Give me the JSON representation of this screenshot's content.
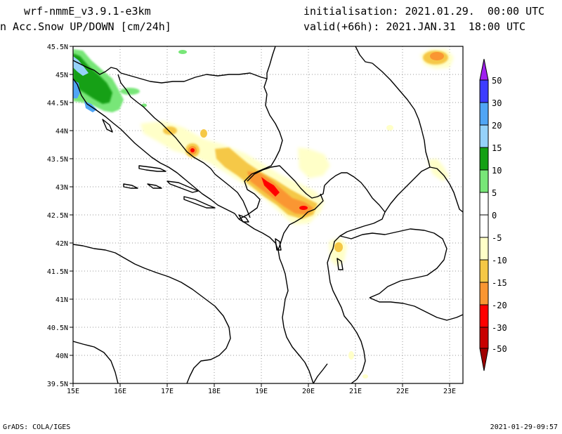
{
  "header": {
    "model": "wrf-nmmE_v3.9.1-e3km",
    "field": "n Acc.Snow UP/DOWN [cm/24h]",
    "initialisation": "initialisation: 2021.01.29.  00:00 UTC",
    "valid": "valid(+66h): 2021.JAN.31  18:00 UTC"
  },
  "map": {
    "lat_ticks": [
      "45.5N",
      "45N",
      "44.5N",
      "44N",
      "43.5N",
      "43N",
      "42.5N",
      "42N",
      "41.5N",
      "41N",
      "40.5N",
      "40N",
      "39.5N"
    ],
    "lon_ticks": [
      "15E",
      "16E",
      "17E",
      "18E",
      "19E",
      "20E",
      "21E",
      "22E",
      "23E"
    ],
    "lon_range": [
      15,
      23.3
    ],
    "lat_range": [
      39.5,
      45.5
    ]
  },
  "colorbar": {
    "labels": [
      "50",
      "30",
      "20",
      "15",
      "10",
      "5",
      "0",
      "-5",
      "-10",
      "-15",
      "-20",
      "-30",
      "-50"
    ],
    "colors": [
      "#a020f0",
      "#3c3cff",
      "#50a5f5",
      "#96d2fa",
      "#14a014",
      "#78e678",
      "#ffffff",
      "#ffffc8",
      "#f5c846",
      "#fa9632",
      "#ff0000",
      "#c80000",
      "#a00000"
    ]
  },
  "footer": {
    "left": "GrADS: COLA/IGES",
    "right": "2021-01-29-09:57"
  }
}
